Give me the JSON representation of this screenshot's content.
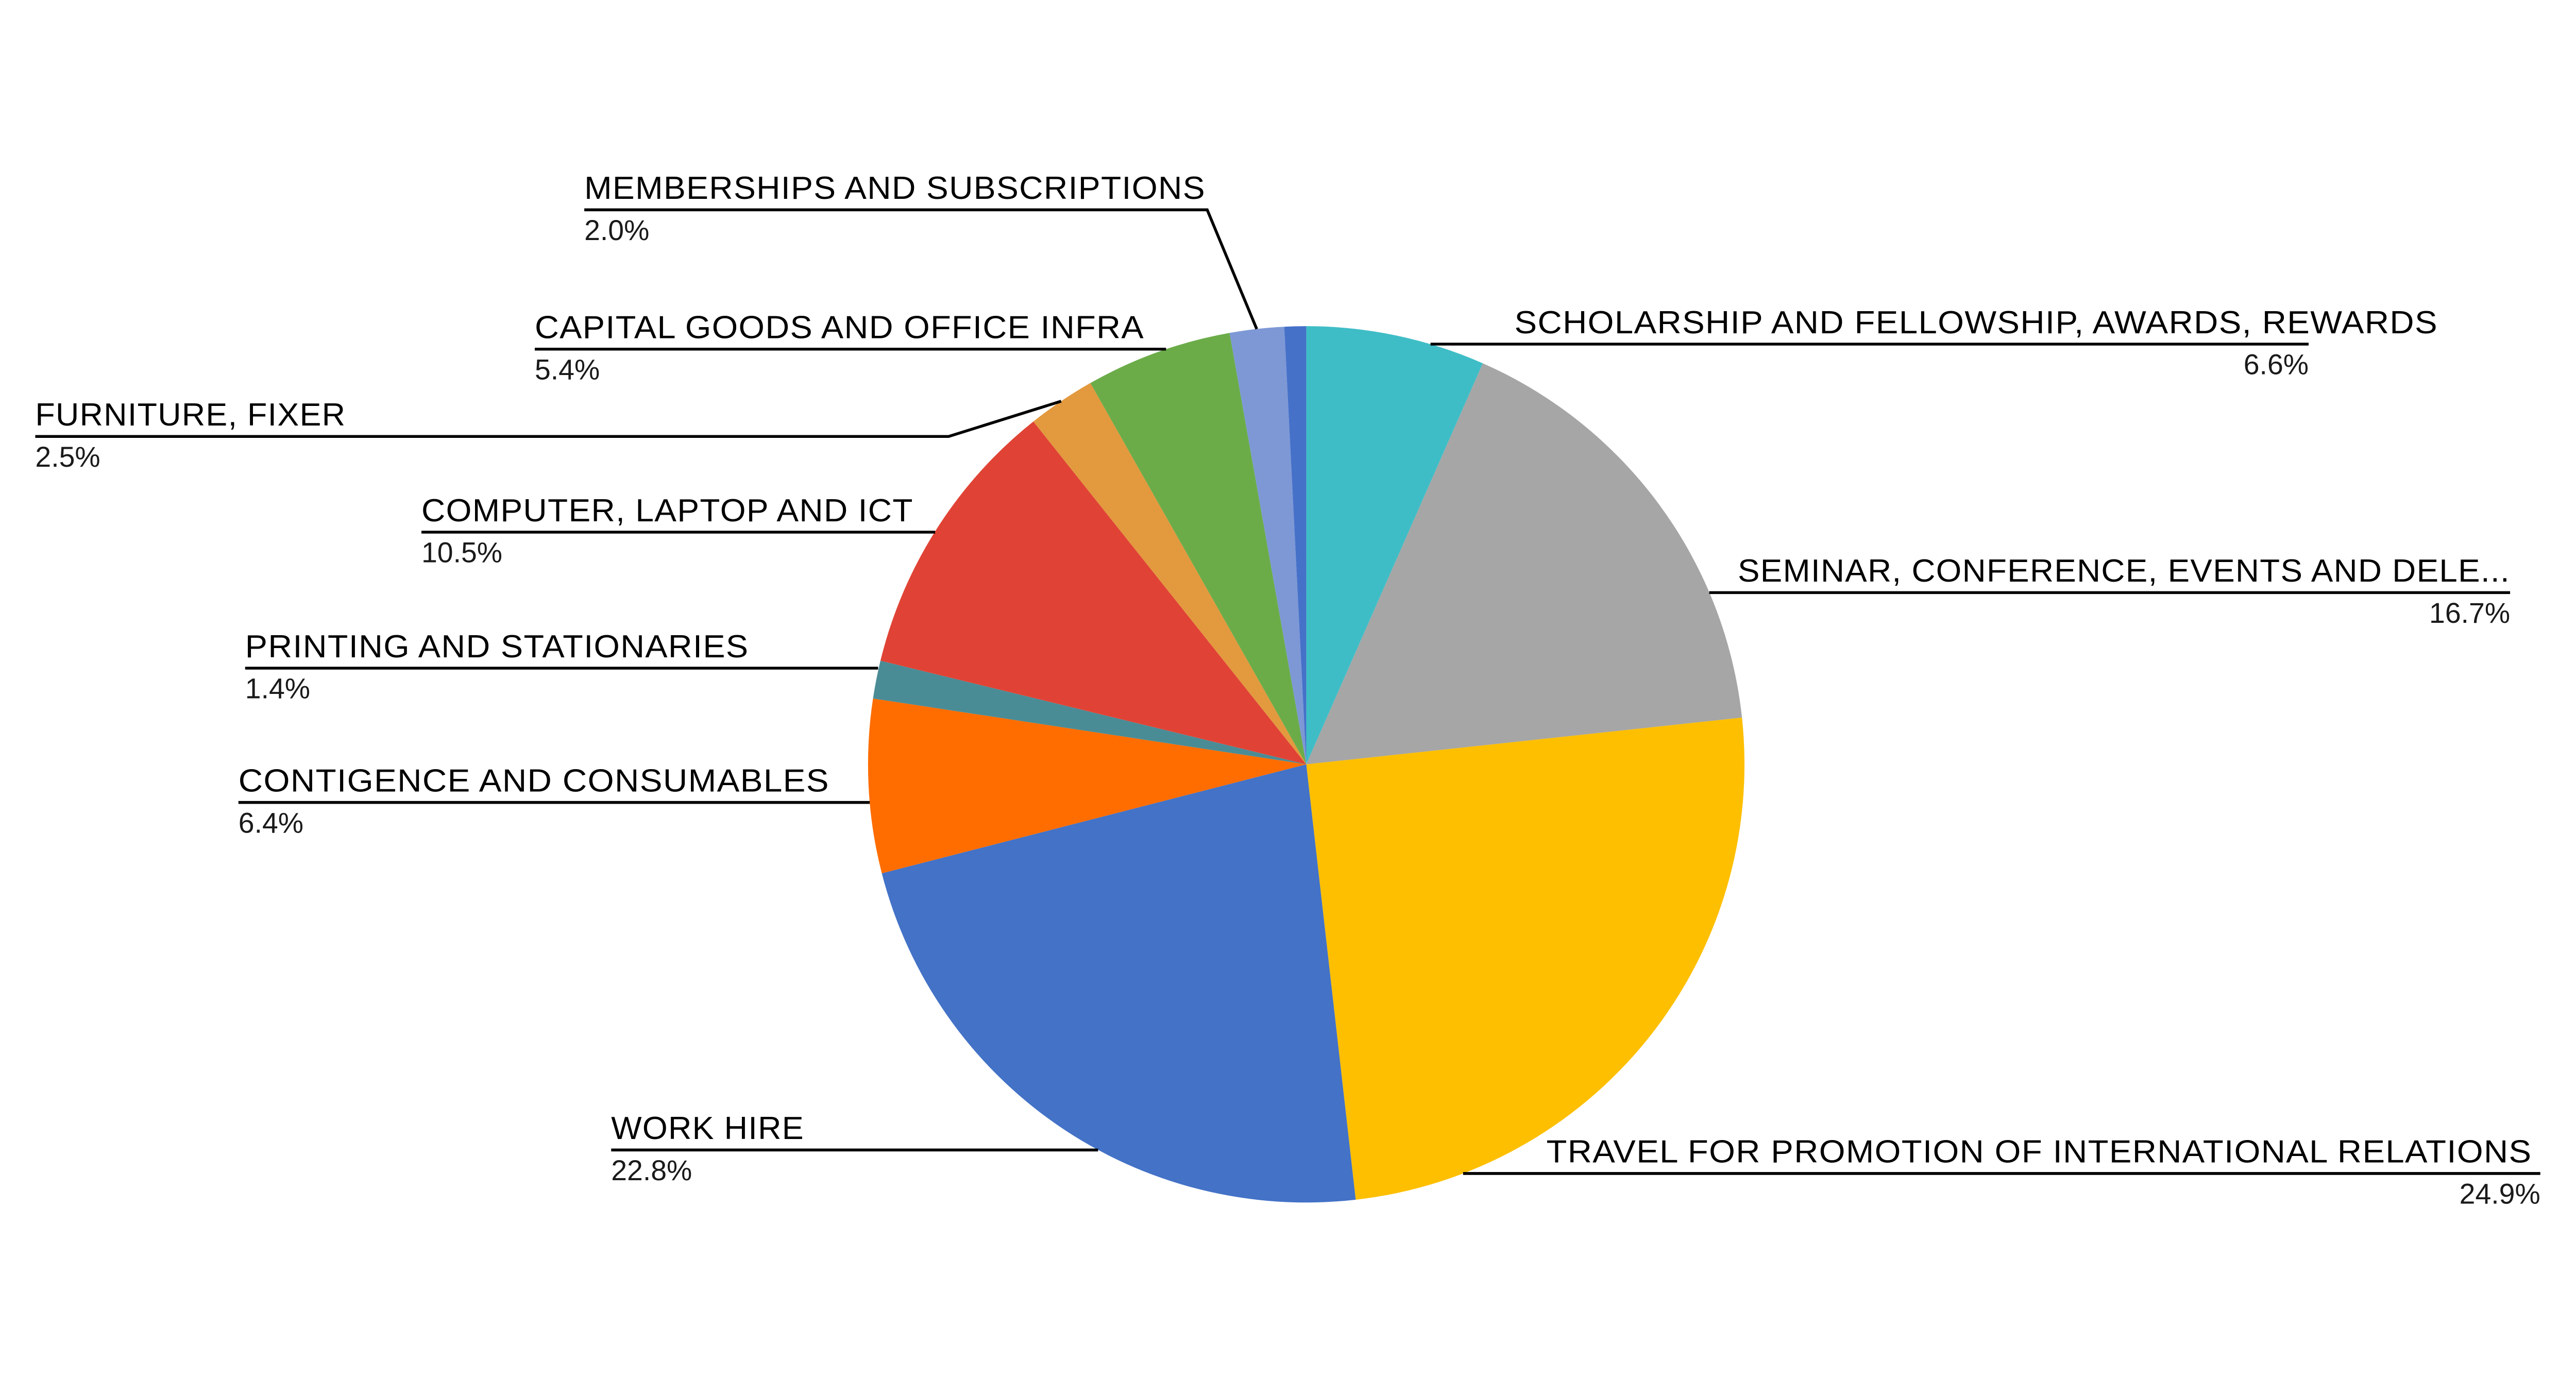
{
  "chart_data": {
    "type": "pie",
    "direction": "clockwise",
    "start_angle_deg": 0,
    "legend": "callout-labels",
    "background": "#ffffff",
    "line_color": "#000000",
    "slices": [
      {
        "id": "scholarship",
        "label": "SCHOLARSHIP AND FELLOWSHIP, AWARDS, REWARDS",
        "value": 6.6,
        "percent_label": "6.6%",
        "color": "#3FBDC6"
      },
      {
        "id": "seminar",
        "label": "SEMINAR, CONFERENCE, EVENTS AND DELE...",
        "value": 16.7,
        "percent_label": "16.7%",
        "color": "#A6A6A6"
      },
      {
        "id": "travel",
        "label": "TRAVEL FOR PROMOTION OF INTERNATIONAL RELATIONS",
        "value": 24.9,
        "percent_label": "24.9%",
        "color": "#FEBF00"
      },
      {
        "id": "work-hire",
        "label": "WORK HIRE",
        "value": 22.8,
        "percent_label": "22.8%",
        "color": "#4372C7"
      },
      {
        "id": "contigence",
        "label": "CONTIGENCE AND CONSUMABLES",
        "value": 6.4,
        "percent_label": "6.4%",
        "color": "#FF6D00"
      },
      {
        "id": "printing",
        "label": "PRINTING AND STATIONARIES",
        "value": 1.4,
        "percent_label": "1.4%",
        "color": "#4A8C96"
      },
      {
        "id": "computer",
        "label": "COMPUTER, LAPTOP AND ICT",
        "value": 10.5,
        "percent_label": "10.5%",
        "color": "#E04335"
      },
      {
        "id": "furniture",
        "label": "FURNITURE, FIXER",
        "value": 2.5,
        "percent_label": "2.5%",
        "color": "#E3993E"
      },
      {
        "id": "capital",
        "label": "CAPITAL GOODS AND OFFICE INFRA",
        "value": 5.4,
        "percent_label": "5.4%",
        "color": "#6BAC49"
      },
      {
        "id": "memberships",
        "label": "MEMBERSHIPS AND SUBSCRIPTIONS",
        "value": 2.0,
        "percent_label": "2.0%",
        "color": "#7D98D5"
      },
      {
        "id": "unlabeled",
        "label": "",
        "value": 0.8,
        "percent_label": "",
        "color": "#4671C9"
      }
    ]
  }
}
